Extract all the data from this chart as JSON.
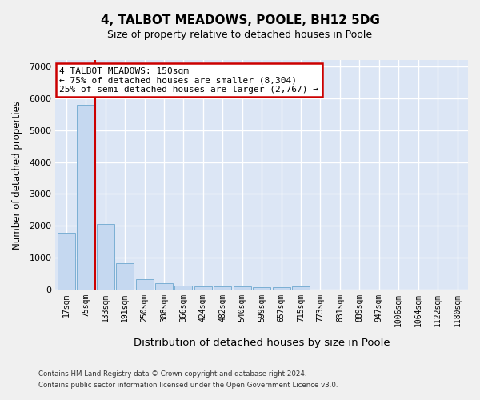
{
  "title": "4, TALBOT MEADOWS, POOLE, BH12 5DG",
  "subtitle": "Size of property relative to detached houses in Poole",
  "xlabel": "Distribution of detached houses by size in Poole",
  "ylabel": "Number of detached properties",
  "bar_color": "#c5d8f0",
  "bar_edge_color": "#7bafd4",
  "background_color": "#dce6f5",
  "grid_color": "#ffffff",
  "categories": [
    "17sqm",
    "75sqm",
    "133sqm",
    "191sqm",
    "250sqm",
    "308sqm",
    "366sqm",
    "424sqm",
    "482sqm",
    "540sqm",
    "599sqm",
    "657sqm",
    "715sqm",
    "773sqm",
    "831sqm",
    "889sqm",
    "947sqm",
    "1006sqm",
    "1064sqm",
    "1122sqm",
    "1180sqm"
  ],
  "values": [
    1780,
    5800,
    2060,
    820,
    340,
    195,
    130,
    110,
    100,
    95,
    90,
    85,
    110,
    0,
    0,
    0,
    0,
    0,
    0,
    0,
    0
  ],
  "vline_color": "#cc0000",
  "vline_position": 1.5,
  "annotation_text": "4 TALBOT MEADOWS: 150sqm\n← 75% of detached houses are smaller (8,304)\n25% of semi-detached houses are larger (2,767) →",
  "annotation_box_color": "#ffffff",
  "annotation_box_edge_color": "#cc0000",
  "ylim": [
    0,
    7200
  ],
  "yticks": [
    0,
    1000,
    2000,
    3000,
    4000,
    5000,
    6000,
    7000
  ],
  "fig_width": 6.0,
  "fig_height": 5.0,
  "fig_bg": "#f0f0f0",
  "footer_line1": "Contains HM Land Registry data © Crown copyright and database right 2024.",
  "footer_line2": "Contains public sector information licensed under the Open Government Licence v3.0."
}
